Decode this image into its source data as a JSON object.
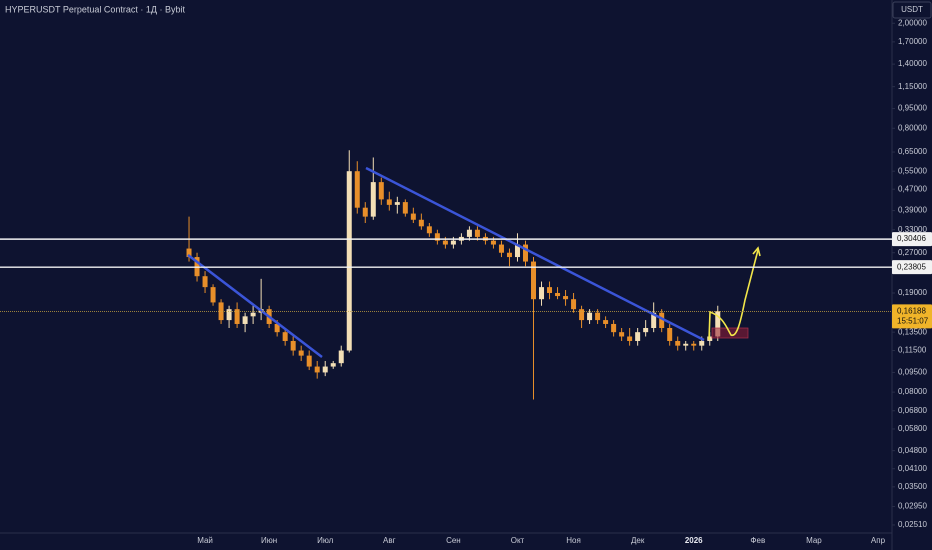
{
  "chart_data": {
    "type": "candlestick",
    "title": "HYPERUSDT Perpetual Contract · 1Д · Bybit",
    "currency": "USDT",
    "log_scale": true,
    "grid": false,
    "up_color": "#f3dfb6",
    "down_color": "#e88f2a",
    "categories": [
      null,
      null,
      null,
      null,
      "Май",
      null,
      null,
      null,
      null,
      null,
      null,
      null,
      "Июн",
      null,
      null,
      null,
      null,
      null,
      null,
      "Июл",
      null,
      null,
      null,
      null,
      null,
      null,
      null,
      "Авг",
      null,
      null,
      null,
      null,
      null,
      null,
      null,
      "Сен",
      null,
      null,
      null,
      null,
      null,
      null,
      null,
      "Окт",
      null,
      null,
      null,
      null,
      null,
      null,
      "Ноя",
      null,
      null,
      null,
      null,
      null,
      null,
      null,
      "Дек",
      null,
      null,
      null,
      null,
      null,
      null,
      "2026",
      null,
      null,
      null,
      null,
      null,
      null,
      null,
      "Фев",
      null,
      null,
      null,
      null,
      null,
      null,
      "Мар",
      null,
      null,
      null,
      null,
      null,
      null,
      null,
      "Апр",
      null
    ],
    "open": [
      null,
      null,
      0.28,
      0.26,
      0.22,
      0.2,
      0.175,
      0.15,
      0.165,
      0.145,
      0.155,
      0.16,
      0.165,
      0.145,
      0.135,
      0.125,
      0.115,
      0.11,
      0.1,
      0.095,
      0.1,
      0.103,
      0.115,
      0.55,
      0.4,
      0.37,
      0.5,
      0.43,
      0.41,
      0.42,
      0.38,
      0.36,
      0.34,
      0.32,
      0.3,
      0.29,
      0.3,
      0.31,
      0.33,
      0.31,
      0.3,
      0.29,
      0.27,
      0.26,
      0.29,
      0.25,
      0.18,
      0.2,
      0.19,
      0.185,
      0.18,
      0.165,
      0.15,
      0.16,
      0.15,
      0.145,
      0.135,
      0.13,
      0.125,
      0.135,
      0.14,
      0.16,
      0.14,
      0.125,
      0.12,
      0.122,
      0.12,
      0.125,
      0.13,
      null,
      null,
      null,
      null,
      null,
      null,
      null,
      null,
      null,
      null,
      null,
      null,
      null,
      null,
      null,
      null,
      null,
      null,
      null,
      null,
      null
    ],
    "high": [
      null,
      null,
      0.37,
      0.27,
      0.23,
      0.205,
      0.18,
      0.17,
      0.175,
      0.16,
      0.17,
      0.215,
      0.17,
      0.15,
      0.14,
      0.13,
      0.12,
      0.115,
      0.105,
      0.105,
      0.105,
      0.12,
      0.66,
      0.6,
      0.42,
      0.62,
      0.52,
      0.46,
      0.44,
      0.43,
      0.4,
      0.38,
      0.35,
      0.33,
      0.31,
      0.31,
      0.32,
      0.34,
      0.34,
      0.32,
      0.31,
      0.3,
      0.28,
      0.32,
      0.3,
      0.26,
      0.21,
      0.21,
      0.2,
      0.195,
      0.19,
      0.17,
      0.165,
      0.165,
      0.155,
      0.15,
      0.14,
      0.14,
      0.14,
      0.15,
      0.175,
      0.165,
      0.145,
      0.13,
      0.125,
      0.125,
      0.13,
      0.135,
      0.17,
      null,
      null,
      null,
      null,
      null,
      null,
      null,
      null,
      null,
      null,
      null,
      null,
      null,
      null,
      null,
      null,
      null,
      null,
      null,
      null,
      null
    ],
    "low": [
      null,
      null,
      0.25,
      0.21,
      0.19,
      0.17,
      0.145,
      0.14,
      0.14,
      0.135,
      0.145,
      0.15,
      0.14,
      0.13,
      0.12,
      0.11,
      0.105,
      0.097,
      0.09,
      0.092,
      0.098,
      0.1,
      0.113,
      0.38,
      0.35,
      0.36,
      0.41,
      0.39,
      0.38,
      0.37,
      0.35,
      0.33,
      0.31,
      0.29,
      0.28,
      0.28,
      0.29,
      0.3,
      0.3,
      0.29,
      0.28,
      0.26,
      0.24,
      0.25,
      0.24,
      0.075,
      0.17,
      0.18,
      0.18,
      0.17,
      0.16,
      0.14,
      0.145,
      0.145,
      0.14,
      0.13,
      0.125,
      0.12,
      0.12,
      0.13,
      0.135,
      0.135,
      0.12,
      0.115,
      0.115,
      0.115,
      0.115,
      0.12,
      0.125,
      null,
      null,
      null,
      null,
      null,
      null,
      null,
      null,
      null,
      null,
      null,
      null,
      null,
      null,
      null,
      null,
      null,
      null,
      null,
      null,
      null
    ],
    "close": [
      null,
      null,
      0.26,
      0.22,
      0.2,
      0.175,
      0.15,
      0.165,
      0.145,
      0.155,
      0.16,
      0.165,
      0.145,
      0.135,
      0.125,
      0.115,
      0.11,
      0.1,
      0.095,
      0.1,
      0.103,
      0.115,
      0.55,
      0.4,
      0.37,
      0.5,
      0.43,
      0.41,
      0.42,
      0.38,
      0.36,
      0.34,
      0.32,
      0.3,
      0.29,
      0.3,
      0.31,
      0.33,
      0.31,
      0.3,
      0.29,
      0.27,
      0.26,
      0.29,
      0.25,
      0.18,
      0.2,
      0.19,
      0.185,
      0.18,
      0.165,
      0.15,
      0.16,
      0.15,
      0.145,
      0.135,
      0.13,
      0.125,
      0.135,
      0.14,
      0.16,
      0.14,
      0.125,
      0.12,
      0.122,
      0.12,
      0.125,
      0.13,
      0.162,
      null,
      null,
      null,
      null,
      null,
      null,
      null,
      null,
      null,
      null,
      null,
      null,
      null,
      null,
      null,
      null,
      null,
      null,
      null,
      null,
      null
    ],
    "ylim": [
      0.0234,
      2.45
    ],
    "yticks": [
      {
        "value": 2.0,
        "label": "2,00000"
      },
      {
        "value": 1.7,
        "label": "1,70000"
      },
      {
        "value": 1.4,
        "label": "1,40000"
      },
      {
        "value": 1.15,
        "label": "1,15000"
      },
      {
        "value": 0.95,
        "label": "0,95000"
      },
      {
        "value": 0.8,
        "label": "0,80000"
      },
      {
        "value": 0.65,
        "label": "0,65000"
      },
      {
        "value": 0.55,
        "label": "0,55000"
      },
      {
        "value": 0.47,
        "label": "0,47000"
      },
      {
        "value": 0.39,
        "label": "0,39000"
      },
      {
        "value": 0.33,
        "label": "0,33000"
      },
      {
        "value": 0.27,
        "label": "0,27000"
      },
      {
        "value": 0.19,
        "label": "0,19000"
      },
      {
        "value": 0.135,
        "label": "0,13500"
      },
      {
        "value": 0.115,
        "label": "0,11500"
      },
      {
        "value": 0.095,
        "label": "0,09500"
      },
      {
        "value": 0.08,
        "label": "0,08000"
      },
      {
        "value": 0.068,
        "label": "0,06800"
      },
      {
        "value": 0.058,
        "label": "0,05800"
      },
      {
        "value": 0.048,
        "label": "0,04800"
      },
      {
        "value": 0.041,
        "label": "0,04100"
      },
      {
        "value": 0.035,
        "label": "0,03500"
      },
      {
        "value": 0.0295,
        "label": "0,02950"
      },
      {
        "value": 0.0251,
        "label": "0,02510"
      }
    ],
    "price_lines": [
      {
        "value": 0.30406,
        "label": "0,30406"
      },
      {
        "value": 0.23805,
        "label": "0,23805"
      }
    ],
    "last_price": {
      "value": 0.16188,
      "label": "0,16188",
      "countdown": "15:51:07"
    }
  }
}
